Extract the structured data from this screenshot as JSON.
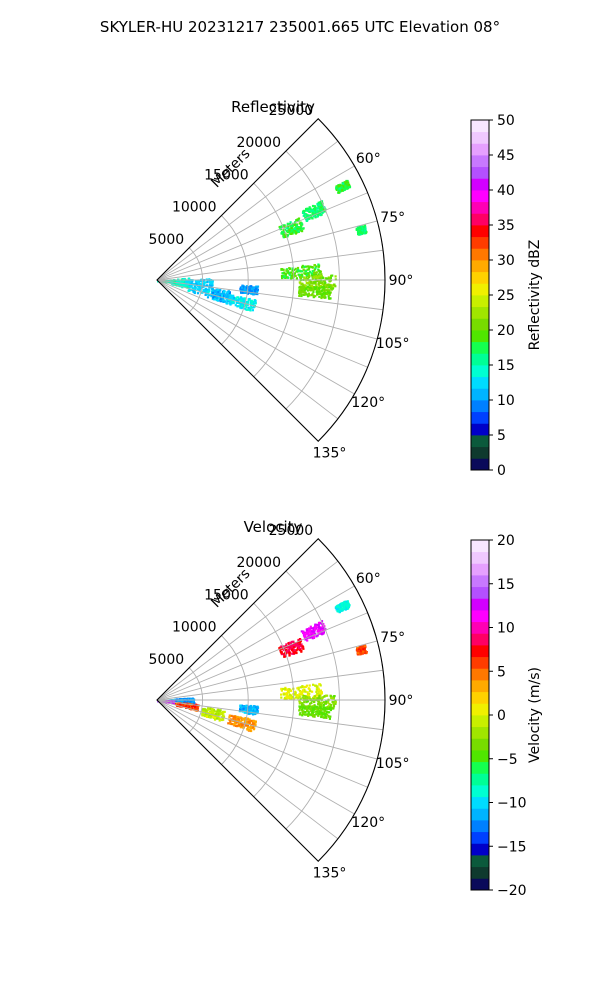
{
  "figure": {
    "suptitle": "SKYLER-HU  20231217  235001.665 UTC Elevation 08°"
  },
  "chart_data": [
    {
      "type": "heatmap",
      "projection": "polar-sector",
      "title": "Reflectivity",
      "range_label": "Meters",
      "range_ticks": [
        "5000",
        "10000",
        "15000",
        "20000",
        "25000"
      ],
      "range_tick_values": [
        5000,
        10000,
        15000,
        20000,
        25000
      ],
      "range_max": 25000,
      "azimuth_ticks": [
        "60°",
        "75°",
        "90°",
        "105°",
        "120°",
        "135°"
      ],
      "azimuth_tick_values": [
        60,
        75,
        90,
        105,
        120,
        135
      ],
      "azimuth_range": [
        45,
        135
      ],
      "grid": true,
      "colorbar": {
        "label": "Reflectivity dBZ",
        "ticks": [
          "0",
          "5",
          "10",
          "15",
          "20",
          "25",
          "30",
          "35",
          "40",
          "45",
          "50"
        ],
        "vmin": 0,
        "vmax": 50,
        "colors": [
          "#0a0a5a",
          "#0e3a2e",
          "#0b5a3c",
          "#0000c8",
          "#0040ff",
          "#0080ff",
          "#00b4ff",
          "#00dcff",
          "#00ffd2",
          "#00ff96",
          "#14ff50",
          "#50e600",
          "#78dc00",
          "#a0e600",
          "#c8f000",
          "#f0f000",
          "#ffd200",
          "#ffaa00",
          "#ff7800",
          "#ff3c00",
          "#ff0000",
          "#ff0064",
          "#ff00b4",
          "#ff00ff",
          "#d200ff",
          "#b450ff",
          "#c878ff",
          "#e6a0ff",
          "#f0c8ff",
          "#f8e6ff"
        ]
      },
      "echoes": [
        {
          "azimuth": [
            62,
            64
          ],
          "range": [
            22000,
            23500
          ],
          "value": 18
        },
        {
          "azimuth": [
            64,
            68
          ],
          "range": [
            17500,
            20000
          ],
          "value": 17
        },
        {
          "azimuth": [
            66,
            71
          ],
          "range": [
            14500,
            17000
          ],
          "value": 18
        },
        {
          "azimuth": [
            75,
            77
          ],
          "range": [
            22500,
            23500
          ],
          "value": 17
        },
        {
          "azimuth": [
            84,
            89
          ],
          "range": [
            13500,
            18000
          ],
          "value": 19
        },
        {
          "azimuth": [
            88,
            93
          ],
          "range": [
            15500,
            19500
          ],
          "value": 21
        },
        {
          "azimuth": [
            92,
            96
          ],
          "range": [
            15500,
            19000
          ],
          "value": 20
        },
        {
          "azimuth": [
            86,
            98
          ],
          "range": [
            0,
            1500
          ],
          "value": 15
        },
        {
          "azimuth": [
            85,
            104
          ],
          "range": [
            1500,
            3500
          ],
          "value": 14
        },
        {
          "azimuth": [
            88,
            108
          ],
          "range": [
            3500,
            6000
          ],
          "value": 12
        },
        {
          "azimuth": [
            98,
            108
          ],
          "range": [
            6000,
            8000
          ],
          "value": 11
        },
        {
          "azimuth": [
            101,
            108
          ],
          "range": [
            8000,
            11000
          ],
          "value": 13
        },
        {
          "azimuth": [
            93,
            98
          ],
          "range": [
            9000,
            11000
          ],
          "value": 10
        }
      ]
    },
    {
      "type": "heatmap",
      "projection": "polar-sector",
      "title": "Velocity",
      "range_label": "Meters",
      "range_ticks": [
        "5000",
        "10000",
        "15000",
        "20000",
        "25000"
      ],
      "range_tick_values": [
        5000,
        10000,
        15000,
        20000,
        25000
      ],
      "range_max": 25000,
      "azimuth_ticks": [
        "60°",
        "75°",
        "90°",
        "105°",
        "120°",
        "135°"
      ],
      "azimuth_tick_values": [
        60,
        75,
        90,
        105,
        120,
        135
      ],
      "azimuth_range": [
        45,
        135
      ],
      "grid": true,
      "colorbar": {
        "label": "Velocity (m/s)",
        "ticks": [
          "−20",
          "−15",
          "−10",
          "−5",
          "0",
          "5",
          "10",
          "15",
          "20"
        ],
        "vmin": -20,
        "vmax": 20,
        "colors": [
          "#0a0a5a",
          "#0e3a2e",
          "#0b5a3c",
          "#0000c8",
          "#0040ff",
          "#0080ff",
          "#00b4ff",
          "#00dcff",
          "#00ffd2",
          "#00ff96",
          "#14ff50",
          "#50e600",
          "#78dc00",
          "#a0e600",
          "#c8f000",
          "#f0f000",
          "#ffd200",
          "#ffaa00",
          "#ff7800",
          "#ff3c00",
          "#ff0000",
          "#ff0064",
          "#ff00b4",
          "#ff00ff",
          "#d200ff",
          "#b450ff",
          "#c878ff",
          "#e6a0ff",
          "#f0c8ff",
          "#f8e6ff"
        ]
      },
      "echoes": [
        {
          "azimuth": [
            62,
            64
          ],
          "range": [
            22000,
            23500
          ],
          "value": -9
        },
        {
          "azimuth": [
            64,
            68
          ],
          "range": [
            17500,
            20000
          ],
          "value": 12
        },
        {
          "azimuth": [
            66,
            71
          ],
          "range": [
            14500,
            17000
          ],
          "value": 8
        },
        {
          "azimuth": [
            75,
            77
          ],
          "range": [
            22500,
            23500
          ],
          "value": 6
        },
        {
          "azimuth": [
            84,
            89
          ],
          "range": [
            13500,
            18000
          ],
          "value": 0
        },
        {
          "azimuth": [
            88,
            93
          ],
          "range": [
            15500,
            19500
          ],
          "value": -3
        },
        {
          "azimuth": [
            92,
            96
          ],
          "range": [
            15500,
            19000
          ],
          "value": -4
        },
        {
          "azimuth": [
            86,
            92
          ],
          "range": [
            0,
            2000
          ],
          "value": -11
        },
        {
          "azimuth": [
            92,
            98
          ],
          "range": [
            0,
            2000
          ],
          "value": 13
        },
        {
          "azimuth": [
            85,
            95
          ],
          "range": [
            2000,
            4000
          ],
          "value": -12
        },
        {
          "azimuth": [
            95,
            104
          ],
          "range": [
            2000,
            4500
          ],
          "value": 6
        },
        {
          "azimuth": [
            98,
            108
          ],
          "range": [
            5000,
            7500
          ],
          "value": -1
        },
        {
          "azimuth": [
            101,
            108
          ],
          "range": [
            8000,
            11000
          ],
          "value": 4
        },
        {
          "azimuth": [
            93,
            98
          ],
          "range": [
            9000,
            11000
          ],
          "value": -11
        }
      ]
    }
  ]
}
